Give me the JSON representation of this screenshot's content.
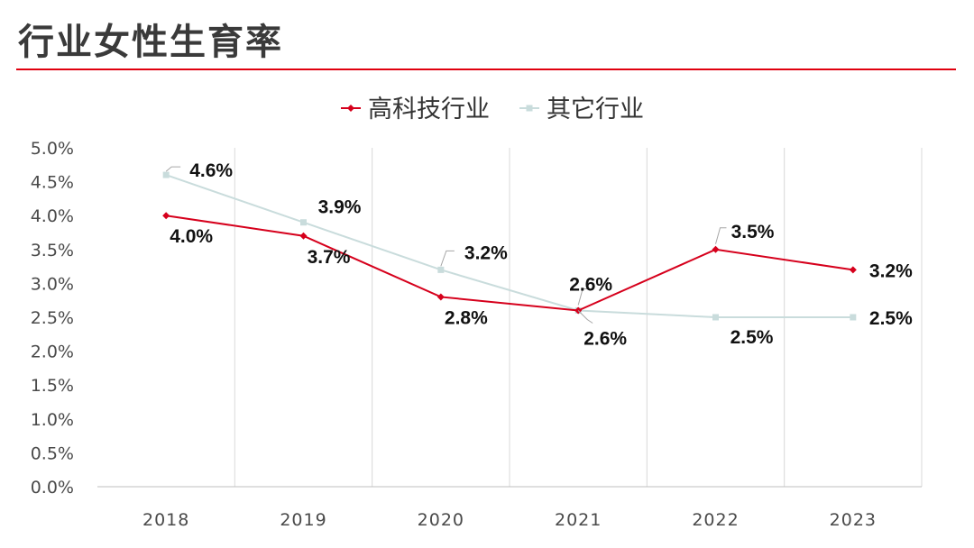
{
  "title": "行业女性生育率",
  "colors": {
    "title_rule": "#e0000f",
    "series_hightech": "#d6001c",
    "series_other": "#c9dcdc",
    "grid": "#d9d9d9",
    "axis": "#bfbfbf"
  },
  "chart_data": {
    "type": "line",
    "categories": [
      "2018",
      "2019",
      "2020",
      "2021",
      "2022",
      "2023"
    ],
    "ylim": [
      0,
      5.0
    ],
    "ytick_step": 0.5,
    "ytick_labels": [
      "0.0%",
      "0.5%",
      "1.0%",
      "1.5%",
      "2.0%",
      "2.5%",
      "3.0%",
      "3.5%",
      "4.0%",
      "4.5%",
      "5.0%"
    ],
    "legend_position": "top-center",
    "grid": "vertical",
    "series": [
      {
        "name": "高科技行业",
        "marker": "diamond",
        "values": [
          4.0,
          3.7,
          2.8,
          2.6,
          3.5,
          3.2
        ],
        "labels": [
          "4.0%",
          "3.7%",
          "2.8%",
          "2.6%",
          "3.5%",
          "3.2%"
        ],
        "label_placement": [
          "below",
          "below",
          "below",
          "above",
          "above",
          "right"
        ]
      },
      {
        "name": "其它行业",
        "marker": "square",
        "values": [
          4.6,
          3.9,
          3.2,
          2.6,
          2.5,
          2.5
        ],
        "labels": [
          "4.6%",
          "3.9%",
          "3.2%",
          "2.6%",
          "2.5%",
          "2.5%"
        ],
        "label_placement": [
          "above-right",
          "above-right",
          "above-right",
          "below-right",
          "below",
          "right"
        ]
      }
    ]
  }
}
